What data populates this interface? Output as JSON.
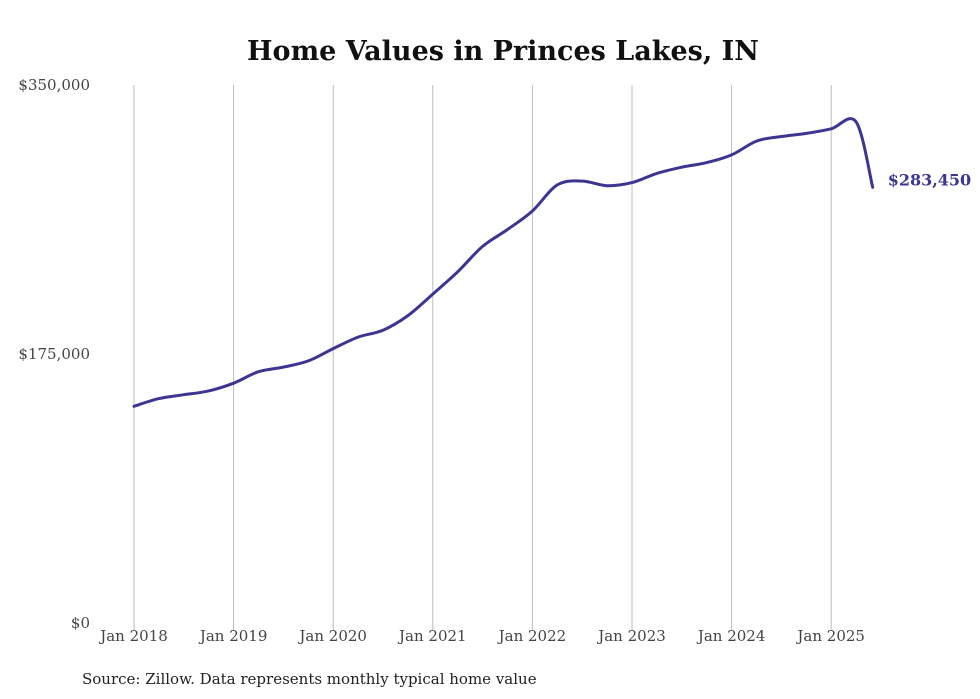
{
  "chart_data": {
    "type": "line",
    "title": "Home Values in Princes Lakes, IN",
    "xlabel": "",
    "ylabel": "",
    "ylim": [
      0,
      350000
    ],
    "y_ticks": [
      {
        "value": 0,
        "label": "$0"
      },
      {
        "value": 175000,
        "label": "$175,000"
      },
      {
        "value": 350000,
        "label": "$350,000"
      }
    ],
    "x_ticks": [
      {
        "date": "2018-01",
        "label": "Jan 2018"
      },
      {
        "date": "2019-01",
        "label": "Jan 2019"
      },
      {
        "date": "2020-01",
        "label": "Jan 2020"
      },
      {
        "date": "2021-01",
        "label": "Jan 2021"
      },
      {
        "date": "2022-01",
        "label": "Jan 2022"
      },
      {
        "date": "2023-01",
        "label": "Jan 2023"
      },
      {
        "date": "2024-01",
        "label": "Jan 2024"
      },
      {
        "date": "2025-01",
        "label": "Jan 2025"
      }
    ],
    "grid": "vertical",
    "line_color": "#3d3592",
    "end_label": "$283,450",
    "series": [
      {
        "x": [
          "2018-01",
          "2018-04",
          "2018-07",
          "2018-10",
          "2019-01",
          "2019-04",
          "2019-07",
          "2019-10",
          "2020-01",
          "2020-04",
          "2020-07",
          "2020-10",
          "2021-01",
          "2021-04",
          "2021-07",
          "2021-10",
          "2022-01",
          "2022-04",
          "2022-07",
          "2022-10",
          "2023-01",
          "2023-04",
          "2023-07",
          "2023-10",
          "2024-01",
          "2024-04",
          "2024-07",
          "2024-10",
          "2025-01",
          "2025-04",
          "2025-06"
        ],
        "values": [
          141000,
          146000,
          148500,
          151000,
          156000,
          163500,
          166500,
          170500,
          178500,
          186000,
          190500,
          200000,
          214000,
          228500,
          245000,
          256000,
          268000,
          285000,
          287500,
          284500,
          286500,
          292500,
          296500,
          299500,
          304500,
          313500,
          316500,
          318500,
          321500,
          326000,
          283450
        ]
      }
    ],
    "source_note": "Source: Zillow. Data represents monthly typical home value"
  }
}
